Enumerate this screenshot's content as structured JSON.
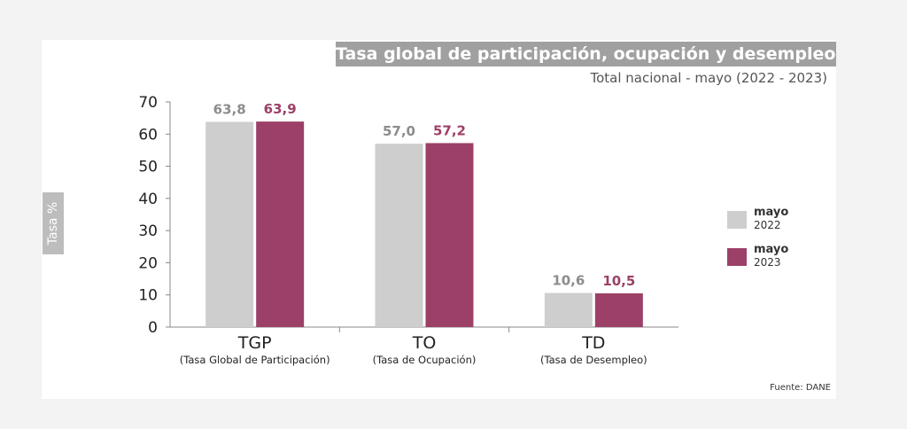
{
  "colors": {
    "series_2022": "#cecece",
    "series_2023": "#9c4068"
  },
  "chart_data": {
    "type": "bar",
    "title": "Tasa global de participación, ocupación y desempleo",
    "subtitle": "Total nacional - mayo (2022 - 2023)",
    "ylabel": "Tasa %",
    "ylim": [
      0,
      70
    ],
    "yticks": [
      "0",
      "10",
      "20",
      "30",
      "40",
      "50",
      "60",
      "70"
    ],
    "categories": [
      {
        "code": "TGP",
        "full": "(Tasa Global de Participación)"
      },
      {
        "code": "TO",
        "full": "(Tasa de Ocupación)"
      },
      {
        "code": "TD",
        "full": "(Tasa de Desempleo)"
      }
    ],
    "series": [
      {
        "name": "mayo",
        "year": "2022",
        "values": [
          63.8,
          57.0,
          10.6
        ],
        "labels": [
          "63,8",
          "57,0",
          "10,6"
        ]
      },
      {
        "name": "mayo",
        "year": "2023",
        "values": [
          63.9,
          57.2,
          10.5
        ],
        "labels": [
          "63,9",
          "57,2",
          "10,5"
        ]
      }
    ],
    "legend_position": "right",
    "source": "Fuente: DANE"
  }
}
